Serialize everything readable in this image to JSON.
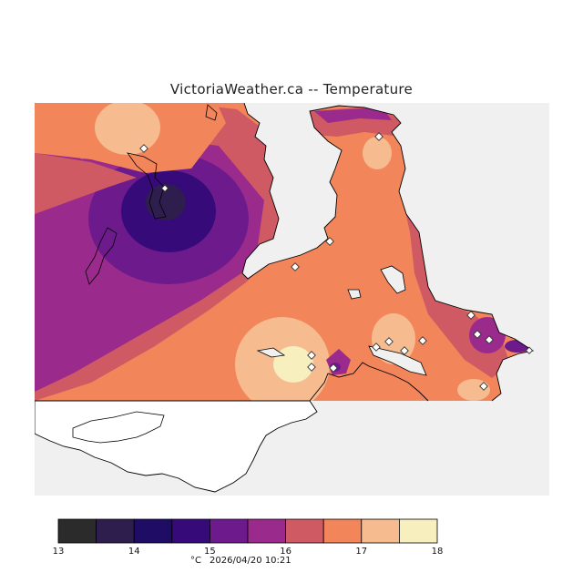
{
  "title": "VictoriaWeather.ca -- Temperature",
  "legend": {
    "ticks": [
      "13",
      "14",
      "15",
      "16",
      "17",
      "18"
    ],
    "colors": [
      "#2b2b2b",
      "#2e1e4d",
      "#1f0c65",
      "#360a79",
      "#6d1a8c",
      "#9a2a8c",
      "#d05a64",
      "#f2855a",
      "#f6bb8f",
      "#f8efbf"
    ],
    "unit": "°C",
    "timestamp": "2026/04/20 10:21"
  },
  "colors": {
    "background": "#f0f0f0",
    "coast": "#000000"
  }
}
